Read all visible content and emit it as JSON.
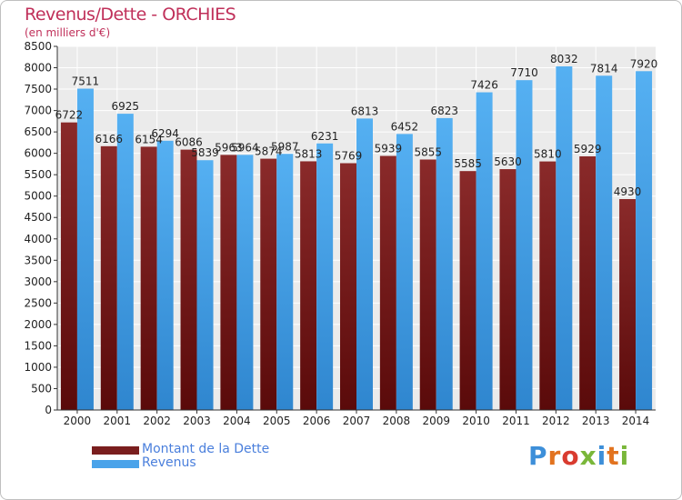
{
  "header": {
    "title": "Revenus/Dette - ORCHIES",
    "subtitle": "(en milliers d'€)"
  },
  "chart_data": {
    "type": "bar",
    "title": "Revenus/Dette - ORCHIES",
    "subtitle": "(en milliers d'€)",
    "xlabel": "",
    "ylabel": "",
    "categories": [
      "2000",
      "2001",
      "2002",
      "2003",
      "2004",
      "2005",
      "2006",
      "2007",
      "2008",
      "2009",
      "2010",
      "2011",
      "2012",
      "2013",
      "2014"
    ],
    "series": [
      {
        "name": "Montant de la Dette",
        "color": "#7a1e1e",
        "values": [
          6722,
          6166,
          6154,
          6086,
          5963,
          5874,
          5813,
          5769,
          5939,
          5855,
          5585,
          5630,
          5810,
          5929,
          4930
        ],
        "labels": [
          "6722",
          "6166",
          "6154",
          "6086",
          "5963",
          "5874",
          "5813",
          "5769",
          "5939",
          "5855",
          "5585",
          "5630",
          "5810",
          "5929",
          "4930"
        ]
      },
      {
        "name": "Revenus",
        "color": "#4aa3ea",
        "values": [
          7511,
          6925,
          6294,
          5839,
          5964,
          5987,
          6231,
          6813,
          6452,
          6823,
          7426,
          7710,
          8032,
          7814,
          7920
        ],
        "labels": [
          "7511",
          "6925",
          "6294",
          "5839",
          "5964",
          "5987",
          "6231",
          "6813",
          "6452",
          "6823",
          "7426",
          "7710",
          "8032",
          "7814",
          "7920"
        ]
      }
    ],
    "ylim": [
      0,
      8500
    ],
    "yticks": [
      "0",
      "500",
      "1000",
      "1500",
      "2000",
      "2500",
      "3000",
      "3500",
      "4000",
      "4500",
      "5000",
      "5500",
      "6000",
      "6500",
      "7000",
      "7500",
      "8000",
      "8500"
    ],
    "grid": true,
    "legend_position": "bottom-left"
  },
  "legend": {
    "items": [
      {
        "label": "Montant de la Dette",
        "color": "#7a1e1e"
      },
      {
        "label": "Revenus",
        "color": "#4aa3ea"
      }
    ]
  },
  "logo": {
    "text": "Proxiti",
    "letters": [
      "P",
      "r",
      "o",
      "x",
      "i",
      "t",
      "i"
    ],
    "colors": [
      "#3d8fd9",
      "#e2731f",
      "#d93b2f",
      "#7ab73a",
      "#3d8fd9",
      "#e2731f",
      "#7ab73a"
    ]
  }
}
